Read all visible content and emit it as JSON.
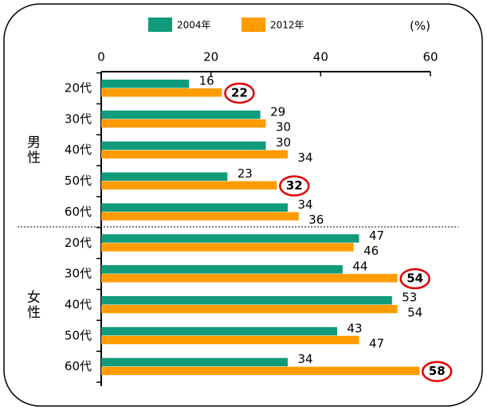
{
  "chart_data": {
    "type": "bar",
    "orientation": "horizontal",
    "unit_label": "(%)",
    "groups": [
      "男性",
      "女性"
    ],
    "categories": [
      "20代",
      "30代",
      "40代",
      "50代",
      "60代",
      "20代",
      "30代",
      "40代",
      "50代",
      "60代"
    ],
    "series": [
      {
        "name": "2004年",
        "color": "#109b7a",
        "values": [
          16,
          29,
          30,
          23,
          34,
          47,
          44,
          53,
          43,
          34
        ]
      },
      {
        "name": "2012年",
        "color": "#ff9c00",
        "values": [
          22,
          30,
          34,
          32,
          36,
          46,
          54,
          54,
          47,
          58
        ],
        "highlight": [
          0,
          3,
          6,
          9
        ]
      }
    ],
    "highlight_color": "#e00000",
    "xlim": [
      0,
      60
    ],
    "xticks": [
      0,
      20,
      40,
      60
    ]
  }
}
